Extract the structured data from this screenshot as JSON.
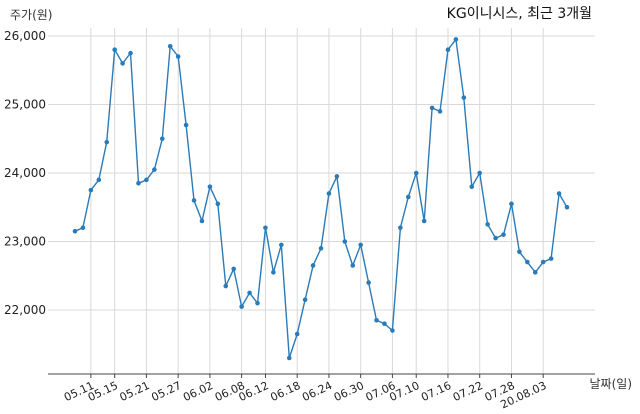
{
  "chart_data": {
    "type": "line",
    "title": "KG이니시스, 최근 3개월",
    "ylabel": "주가(원)",
    "xlabel": "날짜(일)",
    "ylim": [
      21100,
      26200
    ],
    "grid": true,
    "color": "#2b7bb9",
    "y_ticks": [
      22000,
      23000,
      24000,
      25000,
      26000
    ],
    "y_tick_labels": [
      "22,000",
      "23,000",
      "24,000",
      "25,000",
      "26,000"
    ],
    "x_tick_labels": [
      "05.11",
      "05.15",
      "05.21",
      "05.27",
      "06.02",
      "06.08",
      "06.12",
      "06.18",
      "06.24",
      "06.30",
      "07.06",
      "07.10",
      "07.16",
      "07.22",
      "07.28",
      "20.08.03"
    ],
    "x_tick_indices": [
      2,
      5,
      9,
      13,
      17,
      21,
      24,
      28,
      32,
      36,
      40,
      43,
      47,
      51,
      55,
      59
    ],
    "series": [
      {
        "values": [
          23150,
          23200,
          23750,
          23900,
          24450,
          25800,
          25600,
          25750,
          23850,
          23900,
          24050,
          24500,
          25850,
          25700,
          24700,
          23600,
          23300,
          23800,
          23550,
          22350,
          22600,
          22050,
          22250,
          22100,
          23200,
          22550,
          22950,
          21300,
          21650,
          22150,
          22650,
          22900,
          23700,
          23950,
          23000,
          22650,
          22950,
          22400,
          21850,
          21800,
          21700,
          23200,
          23650,
          24000,
          23300,
          24950,
          24900,
          25800,
          25950,
          25100,
          23800,
          24000,
          23250,
          23050,
          23100,
          23550,
          22850,
          22700,
          22550,
          22700,
          22750,
          23700,
          23500
        ]
      }
    ]
  }
}
